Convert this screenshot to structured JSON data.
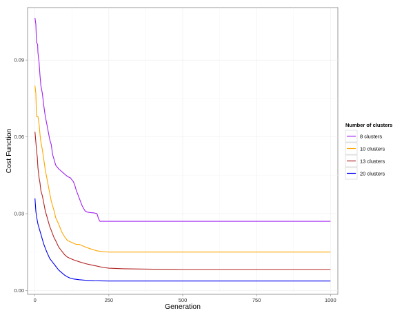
{
  "chart_data": {
    "type": "line",
    "title": "",
    "xlabel": "Generation",
    "ylabel": "Cost Function",
    "xlim": [
      -25,
      1025
    ],
    "ylim": [
      -0.0015,
      0.1105
    ],
    "x_ticks": [
      0,
      250,
      500,
      750,
      1000
    ],
    "x_tick_labels": [
      "0",
      "250",
      "500",
      "750",
      "1000"
    ],
    "y_ticks": [
      0.0,
      0.03,
      0.06,
      0.09
    ],
    "y_tick_labels": [
      "0.00",
      "0.03",
      "0.06",
      "0.09"
    ],
    "grid": true,
    "legend": {
      "title": "Number of clusters",
      "position": "right"
    },
    "series": [
      {
        "name": "8 clusters",
        "color": "#a020f0",
        "x": [
          0,
          3,
          5,
          9,
          10,
          14,
          17,
          20,
          25,
          30,
          35,
          40,
          45,
          50,
          55,
          60,
          65,
          70,
          80,
          90,
          100,
          110,
          120,
          130,
          135,
          140,
          145,
          150,
          160,
          165,
          170,
          180,
          200,
          210,
          215,
          220,
          230,
          250,
          300,
          400,
          500,
          600,
          700,
          800,
          900,
          1000
        ],
        "y": [
          0.1065,
          0.104,
          0.097,
          0.096,
          0.093,
          0.089,
          0.084,
          0.08,
          0.077,
          0.072,
          0.068,
          0.065,
          0.062,
          0.059,
          0.057,
          0.053,
          0.051,
          0.049,
          0.0475,
          0.0465,
          0.0455,
          0.0445,
          0.044,
          0.0425,
          0.041,
          0.039,
          0.0375,
          0.036,
          0.033,
          0.032,
          0.031,
          0.0305,
          0.0303,
          0.03,
          0.028,
          0.027,
          0.027,
          0.027,
          0.027,
          0.027,
          0.027,
          0.027,
          0.027,
          0.027,
          0.027,
          0.027
        ]
      },
      {
        "name": "10 clusters",
        "color": "#ffa500",
        "x": [
          0,
          3,
          5,
          10,
          14,
          17,
          20,
          25,
          30,
          35,
          40,
          45,
          50,
          55,
          60,
          65,
          70,
          80,
          90,
          100,
          110,
          120,
          130,
          140,
          150,
          160,
          170,
          190,
          210,
          230,
          250,
          300,
          400,
          500,
          600,
          700,
          800,
          900,
          1000
        ],
        "y": [
          0.08,
          0.077,
          0.068,
          0.068,
          0.065,
          0.061,
          0.058,
          0.055,
          0.051,
          0.047,
          0.044,
          0.041,
          0.038,
          0.035,
          0.033,
          0.031,
          0.0285,
          0.026,
          0.023,
          0.021,
          0.0195,
          0.019,
          0.0185,
          0.018,
          0.018,
          0.0175,
          0.017,
          0.0162,
          0.0155,
          0.0152,
          0.015,
          0.015,
          0.015,
          0.015,
          0.015,
          0.015,
          0.015,
          0.015,
          0.015
        ]
      },
      {
        "name": "13 clusters",
        "color": "#b22222",
        "x": [
          0,
          3,
          5,
          8,
          10,
          14,
          17,
          20,
          25,
          30,
          35,
          40,
          45,
          50,
          55,
          60,
          65,
          70,
          80,
          90,
          100,
          110,
          120,
          130,
          150,
          170,
          190,
          210,
          230,
          250,
          300,
          400,
          500,
          600,
          700,
          800,
          900,
          1000
        ],
        "y": [
          0.062,
          0.058,
          0.055,
          0.052,
          0.048,
          0.044,
          0.042,
          0.039,
          0.037,
          0.034,
          0.031,
          0.029,
          0.027,
          0.025,
          0.0235,
          0.022,
          0.0205,
          0.0195,
          0.017,
          0.0155,
          0.014,
          0.013,
          0.0125,
          0.012,
          0.0112,
          0.0105,
          0.01,
          0.0095,
          0.009,
          0.0087,
          0.0085,
          0.0083,
          0.0082,
          0.0082,
          0.0082,
          0.0082,
          0.0082,
          0.0082
        ]
      },
      {
        "name": "20 clusters",
        "color": "#0000ee",
        "x": [
          0,
          3,
          5,
          10,
          15,
          20,
          25,
          30,
          35,
          40,
          50,
          60,
          70,
          80,
          90,
          100,
          110,
          120,
          130,
          150,
          170,
          200,
          250,
          300,
          400,
          500,
          600,
          700,
          800,
          900,
          1000
        ],
        "y": [
          0.036,
          0.031,
          0.029,
          0.026,
          0.024,
          0.022,
          0.02,
          0.018,
          0.0165,
          0.015,
          0.0125,
          0.011,
          0.0095,
          0.008,
          0.007,
          0.006,
          0.0053,
          0.0048,
          0.0045,
          0.0042,
          0.004,
          0.0038,
          0.0037,
          0.0037,
          0.0037,
          0.0037,
          0.0037,
          0.0037,
          0.0037,
          0.0037,
          0.0037
        ]
      }
    ]
  }
}
